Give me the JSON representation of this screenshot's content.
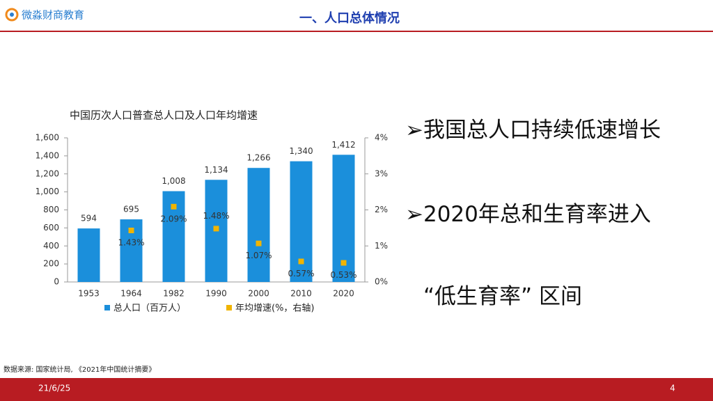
{
  "header": {
    "logo": "微淼财商教育",
    "title": "一、人口总体情况"
  },
  "chart_data": {
    "type": "bar",
    "title": "中国历次人口普查总人口及人口年均增速",
    "categories": [
      "1953",
      "1964",
      "1982",
      "1990",
      "2000",
      "2010",
      "2020"
    ],
    "series": [
      {
        "name": "总人口（百万人）",
        "color": "#1b8fdb",
        "values": [
          594,
          695,
          1008,
          1134,
          1266,
          1340,
          1412
        ],
        "value_labels": [
          "594",
          "695",
          "1,008",
          "1,134",
          "1,266",
          "1,340",
          "1,412"
        ]
      },
      {
        "name": "年均增速(%，右轴)",
        "color": "#f0b400",
        "axis": "y2",
        "values": [
          null,
          1.43,
          2.09,
          1.48,
          1.07,
          0.57,
          0.53
        ],
        "value_labels": [
          null,
          "1.43%",
          "2.09%",
          "1.48%",
          "1.07%",
          "0.57%",
          "0.53%"
        ]
      }
    ],
    "ylim": [
      0,
      1600
    ],
    "yticks": [
      0,
      200,
      400,
      600,
      800,
      {
        "value": 1000,
        "label": "1,000"
      },
      {
        "value": 1200,
        "label": "1,200"
      },
      {
        "value": 1400,
        "label": "1,400"
      },
      {
        "value": 1600,
        "label": "1,600"
      }
    ],
    "y2lim": [
      0,
      4
    ],
    "y2ticks": [
      {
        "value": 0,
        "label": "0%"
      },
      {
        "value": 1,
        "label": "1%"
      },
      {
        "value": 2,
        "label": "2%"
      },
      {
        "value": 3,
        "label": "3%"
      },
      {
        "value": 4,
        "label": "4%"
      }
    ]
  },
  "bullets": [
    "➢我国总人口持续低速增长",
    "➢2020年总和生育率进入",
    "“低生育率” 区间"
  ],
  "source": "数据来源:   国家统计局, 《2021年中国统计摘要》",
  "footer": {
    "date": "21/6/25",
    "page": "4"
  }
}
